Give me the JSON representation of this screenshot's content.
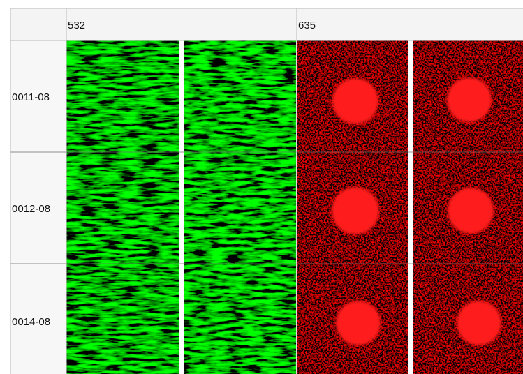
{
  "table": {
    "columns": [
      "532",
      "635"
    ],
    "rows": [
      "0011-08",
      "0012-08",
      "0014-08"
    ]
  }
}
